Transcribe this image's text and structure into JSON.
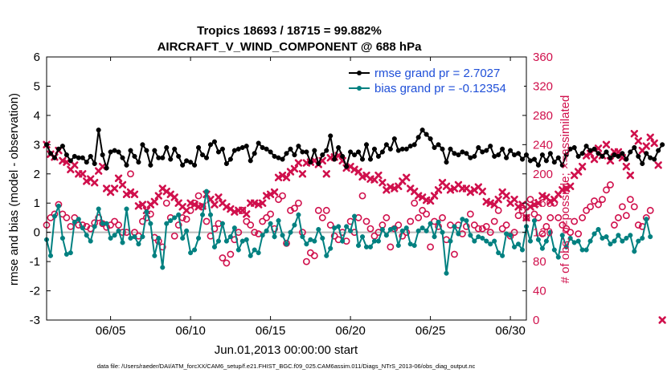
{
  "title": "Tropics 18693 / 18715 = 99.882%",
  "subtitle": "AIRCRAFT_V_WIND_COMPONENT @ 688 hPa",
  "footer": "data file: /Users/raeder/DAI/ATM_forcXX/CAM6_setup/f.e21.FHIST_BGC.f09_025.CAM6assim.011/Diags_NTrS_2013-06/obs_diag_output.nc",
  "colors": {
    "rmse": "#000000",
    "bias": "#008080",
    "obs": "#d0104c",
    "legend_text": "#1f4fd8",
    "zero_line": "#bbbbbb"
  },
  "chart_data": {
    "type": "line",
    "xlabel": "Jun.01,2013 00:00:00 start",
    "ylabel": "rmse and bias (model - observation)",
    "y2label": "# of obs: o=possible; ×=assimilated",
    "xlim": [
      1,
      31
    ],
    "ylim": [
      -3,
      6
    ],
    "y2lim": [
      0,
      360
    ],
    "x_ticks": [
      5,
      10,
      15,
      20,
      25,
      30
    ],
    "x_tick_labels": [
      "06/05",
      "06/10",
      "06/15",
      "06/20",
      "06/25",
      "06/30"
    ],
    "y_ticks": [
      -3,
      -2,
      -1,
      0,
      1,
      2,
      3,
      4,
      5,
      6
    ],
    "y_tick_labels": [
      "-3",
      "-2",
      "-1",
      "0",
      "1",
      "2",
      "3",
      "4",
      "5",
      "6"
    ],
    "y2_ticks": [
      0,
      40,
      80,
      120,
      160,
      200,
      240,
      280,
      320,
      360
    ],
    "y2_tick_labels": [
      "0",
      "40",
      "80",
      "120",
      "160",
      "200",
      "240",
      "280",
      "320",
      "360"
    ],
    "legend": [
      {
        "series": "rmse",
        "label": "rmse grand pr = 2.7027"
      },
      {
        "series": "bias",
        "label": "bias grand pr = -0.12354"
      }
    ],
    "x_start": 1.0,
    "x_step": 0.25,
    "series": [
      {
        "name": "rmse",
        "values": [
          3.0,
          2.7,
          2.55,
          2.85,
          2.95,
          2.65,
          2.45,
          2.6,
          2.55,
          2.55,
          2.4,
          2.6,
          2.35,
          3.5,
          2.65,
          2.2,
          2.75,
          2.8,
          2.75,
          2.55,
          2.3,
          2.8,
          2.6,
          2.4,
          3.0,
          2.8,
          2.3,
          2.8,
          2.55,
          2.55,
          2.9,
          2.5,
          2.85,
          2.6,
          2.3,
          2.45,
          2.4,
          2.3,
          2.9,
          2.65,
          2.55,
          3.0,
          3.1,
          2.75,
          2.85,
          2.35,
          2.5,
          2.8,
          2.85,
          2.9,
          2.95,
          2.45,
          2.7,
          3.05,
          2.9,
          2.85,
          2.75,
          2.6,
          2.55,
          2.5,
          2.7,
          2.85,
          2.65,
          2.95,
          2.75,
          2.75,
          2.4,
          2.8,
          2.35,
          2.65,
          2.8,
          3.3,
          2.5,
          2.9,
          2.6,
          2.25,
          2.75,
          2.65,
          2.75,
          2.5,
          3.0,
          2.5,
          2.85,
          2.6,
          2.75,
          3.0,
          2.85,
          3.2,
          2.8,
          2.85,
          2.85,
          2.95,
          3.0,
          3.25,
          3.5,
          3.35,
          3.2,
          2.9,
          3.0,
          2.85,
          2.4,
          2.85,
          2.7,
          2.65,
          2.75,
          2.7,
          2.55,
          2.6,
          2.9,
          2.75,
          2.8,
          2.95,
          2.6,
          2.65,
          2.85,
          2.55,
          2.8,
          2.65,
          2.7,
          2.5,
          2.65,
          2.45,
          2.5,
          2.3,
          2.65,
          2.45,
          2.7,
          2.4,
          2.55,
          2.3,
          2.65,
          2.85,
          2.9,
          2.6,
          2.7,
          2.95,
          2.8,
          2.85,
          2.7,
          2.6,
          2.75,
          2.55,
          2.65,
          2.6,
          2.7,
          2.5,
          2.75,
          2.9,
          2.6,
          2.35,
          2.7,
          2.55,
          2.5,
          2.8,
          3.0
        ]
      },
      {
        "name": "bias",
        "values": [
          -0.25,
          -0.8,
          0.55,
          0.9,
          -0.2,
          -0.75,
          -0.7,
          0.35,
          0.45,
          0.15,
          -0.1,
          -0.3,
          0.2,
          0.8,
          0.3,
          0.3,
          -0.2,
          -0.1,
          0.05,
          -0.35,
          0.8,
          -0.2,
          -0.15,
          -0.4,
          -0.15,
          0.7,
          0.3,
          -0.8,
          -0.2,
          -1.2,
          0.3,
          0.4,
          0.5,
          0.6,
          -0.2,
          0.05,
          -0.7,
          -0.6,
          -0.2,
          0.6,
          1.4,
          0.6,
          -0.5,
          -0.3,
          0.3,
          -0.3,
          -0.15,
          0.15,
          -0.6,
          -0.3,
          -0.25,
          -0.8,
          -0.6,
          -0.7,
          -0.1,
          0.05,
          0.3,
          -0.15,
          0.4,
          -0.1,
          -0.4,
          0.0,
          0.25,
          0.6,
          -0.15,
          -0.4,
          -0.25,
          -0.3,
          0.1,
          -0.2,
          -0.8,
          -0.55,
          0.15,
          0.2,
          -0.3,
          0.2,
          0.05,
          0.55,
          -0.45,
          -0.15,
          -0.5,
          -0.5,
          -0.3,
          -0.3,
          0.1,
          -0.1,
          0.1,
          0.15,
          -0.45,
          0.05,
          0.15,
          -0.4,
          -0.45,
          0.05,
          0.15,
          0.05,
          0.3,
          -0.15,
          0.35,
          0.0,
          -1.4,
          -0.3,
          0.2,
          -0.05,
          0.45,
          0.4,
          -0.1,
          -0.3,
          -0.15,
          -0.2,
          -0.3,
          -0.4,
          -0.3,
          -0.7,
          -0.8,
          -0.05,
          -0.1,
          -0.5,
          -0.4,
          -0.6,
          0.2,
          -0.3,
          0.4,
          -0.25,
          -0.55,
          -0.3,
          0.0,
          -0.6,
          -0.85,
          -0.1,
          -0.5,
          -0.2,
          -0.35,
          -0.3,
          -0.6,
          -0.6,
          -0.3,
          -0.05,
          0.1,
          -0.2,
          -0.15,
          -0.4,
          -0.3,
          -0.1,
          -0.3,
          -0.2,
          -0.1,
          -0.65,
          -0.3,
          -0.2,
          0.45,
          -0.15
        ]
      },
      {
        "name": "obs",
        "values": [
          130,
          140,
          145,
          158,
          145,
          140,
          128,
          140,
          130,
          130,
          128,
          125,
          133,
          140,
          132,
          127,
          130,
          135,
          130,
          120,
          120,
          200,
          120,
          115,
          135,
          140,
          145,
          113,
          108,
          100,
          160,
          140,
          115,
          130,
          140,
          138,
          150,
          160,
          170,
          155,
          135,
          115,
          125,
          132,
          85,
          78,
          90,
          110,
          120,
          150,
          135,
          130,
          120,
          118,
          135,
          140,
          145,
          125,
          165,
          170,
          105,
          150,
          153,
          160,
          120,
          80,
          92,
          88,
          150,
          140,
          150,
          130,
          115,
          110,
          120,
          108,
          135,
          120,
          140,
          170,
          135,
          125,
          115,
          120,
          130,
          140,
          100,
          125,
          130,
          115,
          120,
          135,
          160,
          140,
          150,
          145,
          100,
          135,
          128,
          140,
          110,
          130,
          90,
          130,
          118,
          128,
          145,
          130,
          125,
          125,
          128,
          120,
          135,
          150,
          125,
          130,
          115,
          120,
          143,
          150,
          140,
          165,
          145,
          140,
          118,
          128,
          140,
          160,
          140,
          130,
          125,
          120,
          135,
          118,
          140,
          150,
          155,
          163,
          158,
          165,
          178,
          185,
          130,
          140,
          155,
          143,
          165,
          155,
          130,
          128,
          140,
          150
        ]
      },
      {
        "name": "assimilated",
        "values": [
          240,
          227,
          223,
          232,
          218,
          216,
          206,
          212,
          200,
          200,
          190,
          193,
          188,
          204,
          210,
          180,
          175,
          180,
          194,
          185,
          172,
          175,
          172,
          156,
          158,
          150,
          158,
          162,
          170,
          180,
          176,
          172,
          168,
          160,
          155,
          150,
          160,
          158,
          155,
          156,
          172,
          165,
          158,
          168,
          160,
          155,
          152,
          148,
          150,
          150,
          145,
          160,
          160,
          158,
          160,
          170,
          172,
          175,
          195,
          198,
          195,
          203,
          207,
          215,
          200,
          215,
          216,
          218,
          213,
          218,
          200,
          222,
          223,
          225,
          218,
          208,
          210,
          206,
          203,
          196,
          198,
          193,
          192,
          198,
          188,
          178,
          182,
          180,
          183,
          190,
          195,
          180,
          176,
          170,
          168,
          164,
          163,
          170,
          178,
          188,
          183,
          178,
          180,
          185,
          180,
          180,
          175,
          178,
          182,
          176,
          162,
          160,
          158,
          165,
          175,
          170,
          160,
          165,
          155,
          158,
          140,
          155,
          158,
          160,
          170,
          168,
          162,
          165,
          172,
          178,
          180,
          183,
          198,
          203,
          210,
          225,
          228,
          220,
          235,
          225,
          240,
          218,
          230,
          230,
          222,
          210,
          198,
          255,
          245,
          232,
          238,
          250,
          242,
          212,
          0
        ]
      }
    ]
  }
}
